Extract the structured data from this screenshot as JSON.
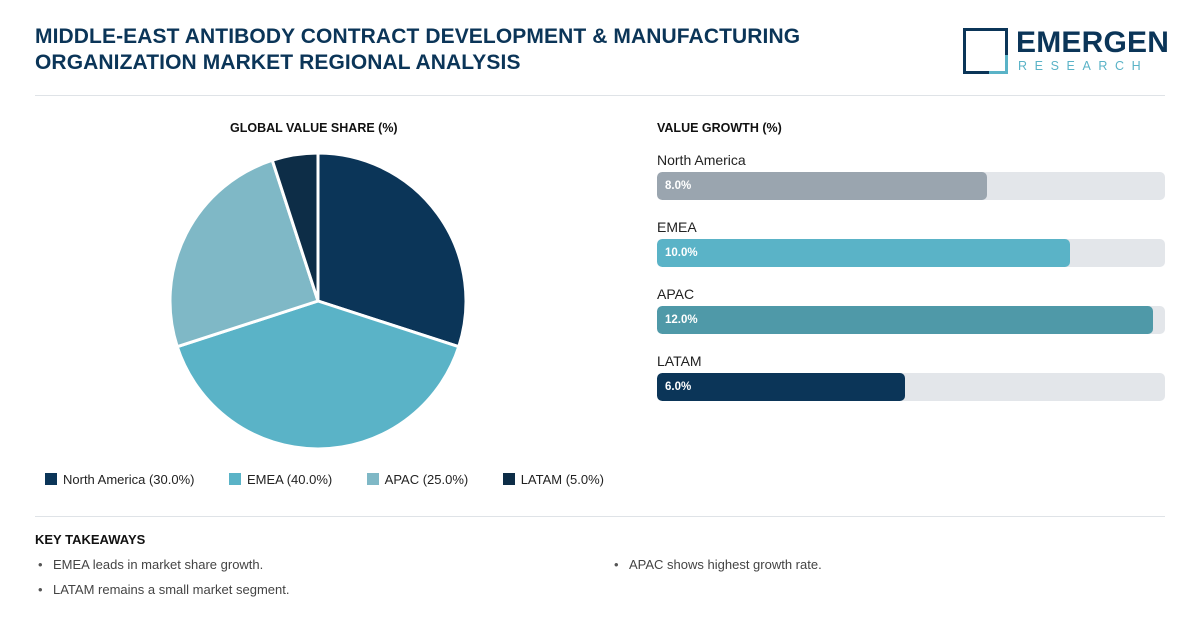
{
  "header": {
    "title_line1": "MIDDLE-EAST ANTIBODY CONTRACT DEVELOPMENT & MANUFACTURING",
    "title_line2": "ORGANIZATION MARKET REGIONAL ANALYSIS",
    "logo_main": "EMERGEN",
    "logo_sub": "RESEARCH"
  },
  "colors": {
    "navy": "#0b3558",
    "teal": "#5ab3c7",
    "gray": "#9aa5af",
    "teal_dark": "#4f99a8",
    "track": "#e3e6ea"
  },
  "chart_data": [
    {
      "type": "pie",
      "title": "GLOBAL VALUE SHARE (%)",
      "slices": [
        {
          "label": "North America",
          "value": 30.0,
          "legend": "North America (30.0%)",
          "color": "#0b3558"
        },
        {
          "label": "EMEA",
          "value": 40.0,
          "legend": "EMEA (40.0%)",
          "color": "#5ab3c7"
        },
        {
          "label": "APAC",
          "value": 25.0,
          "legend": "APAC (25.0%)",
          "color": "#7fb8c6"
        },
        {
          "label": "LATAM",
          "value": 5.0,
          "legend": "LATAM (5.0%)",
          "color": "#0d2d47"
        }
      ],
      "legend_position": "bottom"
    },
    {
      "type": "bar",
      "orientation": "horizontal",
      "title": "VALUE GROWTH (%)",
      "categories": [
        "North America",
        "EMEA",
        "APAC",
        "LATAM"
      ],
      "values": [
        8.0,
        10.0,
        12.0,
        6.0
      ],
      "value_labels": [
        "8.0%",
        "10.0%",
        "12.0%",
        "6.0%"
      ],
      "colors": [
        "#9aa5af",
        "#5ab3c7",
        "#4f99a8",
        "#0b3558"
      ],
      "xlim": [
        0,
        12.3
      ]
    }
  ],
  "takeaways": {
    "title": "KEY TAKEAWAYS",
    "bullet": "•",
    "items": [
      "EMEA leads in market share growth.",
      "LATAM remains a small market segment.",
      "APAC shows highest growth rate."
    ]
  }
}
